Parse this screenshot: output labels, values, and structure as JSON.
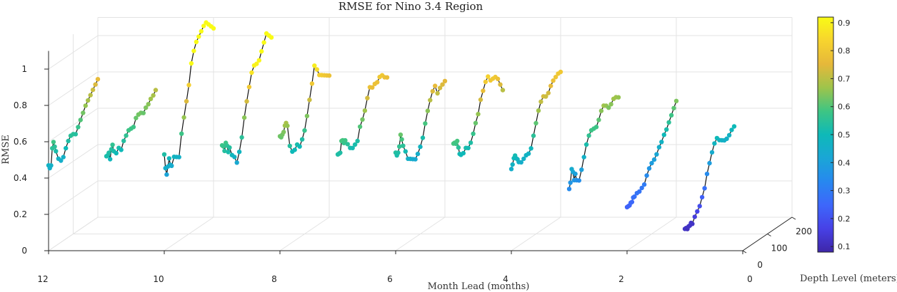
{
  "chart_data": {
    "type": "line",
    "title": "RMSE for Nino 3.4 Region",
    "xlabel": "Month Lead (months)",
    "ylabel": "Depth Level (meters)",
    "zlabel": "RMSE",
    "xlim": [
      0,
      12
    ],
    "ylim": [
      0,
      200
    ],
    "zlim": [
      0,
      1.1
    ],
    "xticks": [
      "12",
      "10",
      "8",
      "6",
      "4",
      "2",
      "0"
    ],
    "yticks": [
      "0",
      "100",
      "200"
    ],
    "zticks": [
      "0",
      "0.2",
      "0.4",
      "0.6",
      "0.8",
      "1"
    ],
    "grid": true,
    "colormap": "parula",
    "color_by": "RMSE",
    "colorbar": {
      "ticks": [
        "0.1",
        "0.2",
        "0.3",
        "0.4",
        "0.5",
        "0.6",
        "0.7",
        "0.8",
        "0.9"
      ],
      "range": [
        0.08,
        0.92
      ],
      "placement": "right"
    },
    "series": [
      {
        "lead": 12,
        "depth": [
          0,
          5,
          10,
          15,
          20,
          25,
          30,
          40,
          50,
          60,
          70,
          80,
          90,
          100,
          110,
          120,
          130,
          140,
          150,
          160,
          170,
          180,
          190,
          200
        ],
        "rmse": [
          0.47,
          0.45,
          0.46,
          0.55,
          0.58,
          0.55,
          0.52,
          0.47,
          0.45,
          0.46,
          0.5,
          0.53,
          0.55,
          0.55,
          0.54,
          0.57,
          0.6,
          0.63,
          0.66,
          0.68,
          0.7,
          0.72,
          0.74,
          0.76
        ]
      },
      {
        "lead": 11,
        "depth": [
          0,
          5,
          10,
          15,
          20,
          25,
          30,
          40,
          50,
          60,
          70,
          80,
          90,
          100,
          110,
          120,
          130,
          140,
          150,
          160,
          170,
          180,
          190,
          200
        ],
        "rmse": [
          0.52,
          0.52,
          0.53,
          0.49,
          0.54,
          0.56,
          0.52,
          0.5,
          0.52,
          0.5,
          0.54,
          0.56,
          0.58,
          0.58,
          0.58,
          0.62,
          0.63,
          0.63,
          0.62,
          0.64,
          0.65,
          0.67,
          0.68,
          0.7
        ]
      },
      {
        "lead": 10,
        "depth": [
          0,
          5,
          10,
          15,
          20,
          25,
          30,
          40,
          50,
          60,
          70,
          80,
          90,
          100,
          110,
          120,
          130,
          140,
          150,
          160,
          170,
          180,
          190,
          200
        ],
        "rmse": [
          0.53,
          0.45,
          0.41,
          0.45,
          0.49,
          0.45,
          0.44,
          0.48,
          0.47,
          0.46,
          0.58,
          0.66,
          0.74,
          0.82,
          0.93,
          0.99,
          1.03,
          1.05,
          1.07,
          1.09,
          1.1,
          1.08,
          1.06,
          1.04
        ]
      },
      {
        "lead": 9,
        "depth": [
          0,
          5,
          10,
          15,
          20,
          25,
          30,
          40,
          50,
          60,
          70,
          80,
          90,
          100,
          110,
          120,
          130,
          140,
          150,
          160,
          170,
          180,
          190,
          200
        ],
        "rmse": [
          0.58,
          0.57,
          0.54,
          0.58,
          0.56,
          0.52,
          0.54,
          0.49,
          0.47,
          0.43,
          0.48,
          0.55,
          0.65,
          0.73,
          0.8,
          0.87,
          0.9,
          0.9,
          0.91,
          0.95,
          0.99,
          1.03,
          1.01,
          0.99
        ]
      },
      {
        "lead": 8,
        "depth": [
          0,
          5,
          10,
          15,
          20,
          25,
          30,
          40,
          50,
          60,
          70,
          80,
          90,
          100,
          110,
          120,
          130,
          140,
          150,
          160,
          170,
          180,
          190,
          200
        ],
        "rmse": [
          0.63,
          0.62,
          0.63,
          0.64,
          0.67,
          0.68,
          0.66,
          0.54,
          0.5,
          0.5,
          0.52,
          0.5,
          0.53,
          0.57,
          0.64,
          0.72,
          0.8,
          0.89,
          0.86,
          0.82,
          0.81,
          0.8,
          0.79,
          0.78
        ]
      },
      {
        "lead": 7,
        "depth": [
          0,
          5,
          10,
          15,
          20,
          25,
          30,
          40,
          50,
          60,
          70,
          80,
          90,
          100,
          110,
          120,
          130,
          140,
          150,
          160,
          170,
          180,
          190,
          200
        ],
        "rmse": [
          0.53,
          0.53,
          0.53,
          0.59,
          0.59,
          0.57,
          0.58,
          0.55,
          0.52,
          0.51,
          0.52,
          0.53,
          0.6,
          0.63,
          0.67,
          0.73,
          0.78,
          0.77,
          0.78,
          0.78,
          0.8,
          0.8,
          0.78,
          0.77
        ]
      },
      {
        "lead": 6,
        "depth": [
          0,
          5,
          10,
          15,
          20,
          25,
          30,
          40,
          50,
          60,
          70,
          80,
          90,
          100,
          110,
          120,
          130,
          140,
          150,
          160,
          170,
          180,
          190,
          200
        ],
        "rmse": [
          0.54,
          0.52,
          0.53,
          0.56,
          0.62,
          0.59,
          0.55,
          0.51,
          0.46,
          0.45,
          0.44,
          0.43,
          0.45,
          0.48,
          0.52,
          0.59,
          0.65,
          0.7,
          0.74,
          0.76,
          0.71,
          0.73,
          0.74,
          0.75
        ]
      },
      {
        "lead": 5,
        "depth": [
          0,
          5,
          10,
          15,
          20,
          25,
          30,
          40,
          50,
          60,
          70,
          80,
          90,
          100,
          110,
          120,
          130,
          140,
          150,
          160,
          170,
          180,
          190,
          200
        ],
        "rmse": [
          0.59,
          0.59,
          0.58,
          0.59,
          0.55,
          0.51,
          0.5,
          0.5,
          0.52,
          0.51,
          0.53,
          0.57,
          0.62,
          0.66,
          0.73,
          0.77,
          0.81,
          0.83,
          0.8,
          0.8,
          0.8,
          0.78,
          0.74,
          0.7
        ]
      },
      {
        "lead": 4,
        "depth": [
          0,
          5,
          10,
          15,
          20,
          25,
          30,
          40,
          50,
          60,
          70,
          80,
          90,
          100,
          110,
          120,
          130,
          140,
          150,
          160,
          170,
          180,
          190,
          200
        ],
        "rmse": [
          0.45,
          0.47,
          0.5,
          0.51,
          0.49,
          0.48,
          0.46,
          0.45,
          0.46,
          0.47,
          0.47,
          0.49,
          0.55,
          0.61,
          0.67,
          0.71,
          0.73,
          0.72,
          0.73,
          0.76,
          0.78,
          0.79,
          0.8,
          0.8
        ]
      },
      {
        "lead": 3,
        "depth": [
          0,
          5,
          10,
          15,
          20,
          25,
          30,
          40,
          50,
          60,
          70,
          80,
          90,
          100,
          110,
          120,
          130,
          140,
          150,
          160,
          170,
          180,
          190,
          200
        ],
        "rmse": [
          0.34,
          0.37,
          0.44,
          0.42,
          0.37,
          0.4,
          0.36,
          0.35,
          0.4,
          0.46,
          0.52,
          0.56,
          0.58,
          0.58,
          0.58,
          0.61,
          0.65,
          0.67,
          0.66,
          0.64,
          0.65,
          0.67,
          0.67,
          0.66
        ]
      },
      {
        "lead": 2,
        "depth": [
          0,
          5,
          10,
          15,
          20,
          25,
          30,
          40,
          50,
          60,
          70,
          80,
          90,
          100,
          110,
          120,
          130,
          140,
          150,
          160,
          170,
          180,
          190,
          200
        ],
        "rmse": [
          0.24,
          0.24,
          0.24,
          0.25,
          0.25,
          0.27,
          0.27,
          0.28,
          0.28,
          0.29,
          0.3,
          0.34,
          0.37,
          0.39,
          0.4,
          0.42,
          0.45,
          0.47,
          0.5,
          0.52,
          0.55,
          0.58,
          0.61,
          0.64
        ]
      },
      {
        "lead": 1,
        "depth": [
          0,
          5,
          10,
          15,
          20,
          25,
          30,
          40,
          50,
          60,
          70,
          80,
          90,
          100,
          110,
          120,
          130,
          140,
          150,
          160,
          170,
          180,
          190,
          200
        ],
        "rmse": [
          0.12,
          0.12,
          0.11,
          0.12,
          0.12,
          0.13,
          0.12,
          0.15,
          0.17,
          0.19,
          0.23,
          0.27,
          0.34,
          0.39,
          0.44,
          0.48,
          0.5,
          0.48,
          0.47,
          0.46,
          0.46,
          0.47,
          0.49,
          0.5
        ]
      }
    ]
  }
}
